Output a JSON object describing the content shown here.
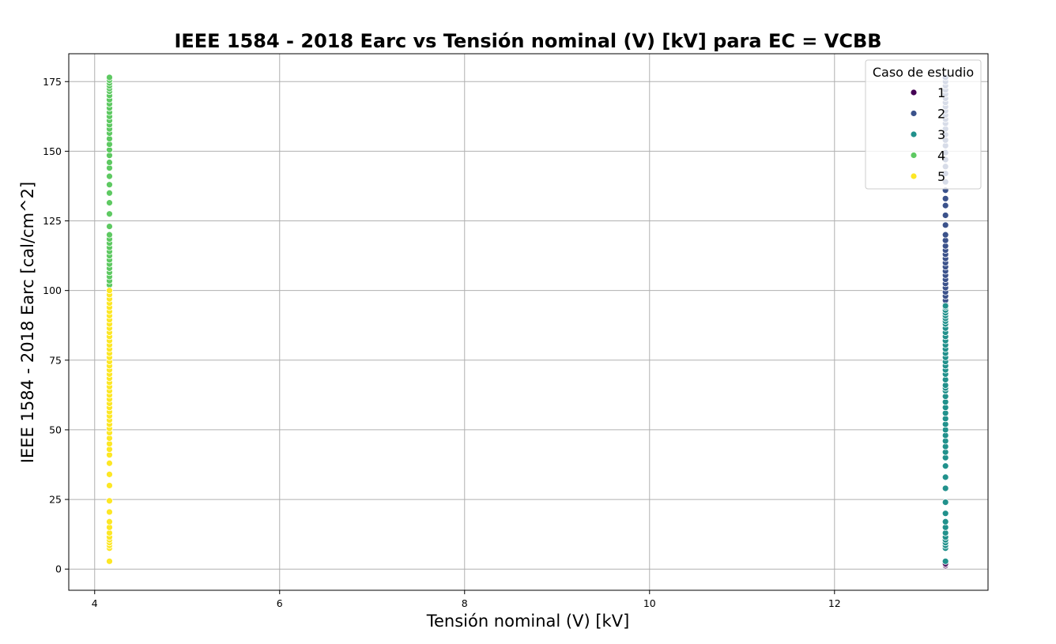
{
  "chart_data": {
    "type": "scatter",
    "title": "IEEE 1584 - 2018 Earc vs Tensión nominal (V) [kV] para EC = VCBB",
    "xlabel": "Tensión nominal (V) [kV]",
    "ylabel": "IEEE 1584 - 2018 Earc [cal/cm^2]",
    "xlim": [
      3.72,
      13.66
    ],
    "ylim": [
      -7.6,
      185
    ],
    "x_ticks": [
      4,
      6,
      8,
      10,
      12
    ],
    "y_ticks": [
      0,
      25,
      50,
      75,
      100,
      125,
      150,
      175
    ],
    "grid": true,
    "legend": {
      "title": "Caso de estudio",
      "placement": "top-right",
      "entries": [
        "1",
        "2",
        "3",
        "4",
        "5"
      ]
    },
    "series": [
      {
        "name": "1",
        "color": "#440154",
        "x": [
          13.2,
          13.2,
          13.2
        ],
        "y": [
          1.2,
          1.6,
          2.0
        ]
      },
      {
        "name": "2",
        "color": "#3b528b",
        "x": [
          13.2,
          13.2,
          13.2,
          13.2,
          13.2,
          13.2,
          13.2,
          13.2,
          13.2,
          13.2,
          13.2,
          13.2,
          13.2,
          13.2,
          13.2,
          13.2,
          13.2,
          13.2,
          13.2,
          13.2,
          13.2,
          13.2,
          13.2,
          13.2,
          13.2,
          13.2,
          13.2,
          13.2,
          13.2,
          13.2,
          13.2,
          13.2,
          13.2,
          13.2,
          13.2,
          13.2,
          13.2,
          13.2,
          13.2,
          13.2,
          13.2,
          13.2,
          13.2
        ],
        "y": [
          95,
          96.5,
          98,
          99.5,
          101,
          102.5,
          104,
          105.5,
          107,
          108.5,
          110,
          111.5,
          113,
          114.5,
          116,
          118,
          120,
          123.5,
          127,
          130.5,
          133,
          136,
          139,
          142,
          144.5,
          147,
          149.5,
          152,
          154,
          156,
          158,
          160,
          161.5,
          163,
          164.5,
          166,
          167.5,
          169,
          170.5,
          172,
          173.5,
          175,
          176.5
        ]
      },
      {
        "name": "3",
        "color": "#21918c",
        "x": [
          13.2,
          13.2,
          13.2,
          13.2,
          13.2,
          13.2,
          13.2,
          13.2,
          13.2,
          13.2,
          13.2,
          13.2,
          13.2,
          13.2,
          13.2,
          13.2,
          13.2,
          13.2,
          13.2,
          13.2,
          13.2,
          13.2,
          13.2,
          13.2,
          13.2,
          13.2,
          13.2,
          13.2,
          13.2,
          13.2,
          13.2,
          13.2,
          13.2,
          13.2,
          13.2,
          13.2,
          13.2,
          13.2,
          13.2,
          13.2,
          13.2,
          13.2,
          13.2,
          13.2,
          13.2,
          13.2,
          13.2,
          13.2,
          13.2,
          13.2
        ],
        "y": [
          2.8,
          7.5,
          8.5,
          9.5,
          10.5,
          11.5,
          13,
          15,
          17,
          20,
          24,
          29,
          33,
          37,
          40,
          42,
          44,
          46,
          48,
          50,
          52,
          54,
          56,
          58,
          60,
          62,
          64,
          65,
          66,
          68,
          70,
          71.5,
          73,
          74.5,
          76,
          77.5,
          79,
          80.5,
          82,
          83.5,
          85,
          86.5,
          88,
          89,
          90,
          91,
          92,
          93,
          94,
          94.5
        ]
      },
      {
        "name": "4",
        "color": "#5ec962",
        "x": [
          4.16,
          4.16,
          4.16,
          4.16,
          4.16,
          4.16,
          4.16,
          4.16,
          4.16,
          4.16,
          4.16,
          4.16,
          4.16,
          4.16,
          4.16,
          4.16,
          4.16,
          4.16,
          4.16,
          4.16,
          4.16,
          4.16,
          4.16,
          4.16,
          4.16,
          4.16,
          4.16,
          4.16,
          4.16,
          4.16,
          4.16,
          4.16,
          4.16,
          4.16,
          4.16,
          4.16,
          4.16,
          4.16,
          4.16,
          4.16,
          4.16
        ],
        "y": [
          102,
          103.5,
          105,
          106.5,
          108,
          109.5,
          111,
          112.5,
          114,
          115.5,
          117,
          118.5,
          120,
          123,
          127.5,
          131.5,
          135,
          138,
          141,
          144,
          146,
          148.5,
          150.5,
          152.5,
          154.5,
          156.5,
          158,
          159.5,
          161,
          162.5,
          164,
          165.5,
          167,
          168.5,
          170,
          171.5,
          172.5,
          173.5,
          174.5,
          175.5,
          176.5
        ]
      },
      {
        "name": "5",
        "color": "#fde725",
        "x": [
          4.16,
          4.16,
          4.16,
          4.16,
          4.16,
          4.16,
          4.16,
          4.16,
          4.16,
          4.16,
          4.16,
          4.16,
          4.16,
          4.16,
          4.16,
          4.16,
          4.16,
          4.16,
          4.16,
          4.16,
          4.16,
          4.16,
          4.16,
          4.16,
          4.16,
          4.16,
          4.16,
          4.16,
          4.16,
          4.16,
          4.16,
          4.16,
          4.16,
          4.16,
          4.16,
          4.16,
          4.16,
          4.16,
          4.16,
          4.16,
          4.16,
          4.16,
          4.16,
          4.16,
          4.16,
          4.16,
          4.16,
          4.16,
          4.16,
          4.16,
          4.16,
          4.16,
          4.16
        ],
        "y": [
          2.8,
          7.5,
          8.5,
          9.5,
          10.5,
          11.5,
          13,
          15,
          17,
          20.5,
          24.5,
          30,
          34,
          38,
          41,
          43,
          45,
          47,
          49,
          50.5,
          52,
          53.5,
          55,
          56.5,
          58,
          59.5,
          61,
          62.5,
          64,
          65.5,
          67,
          68.5,
          70,
          71.5,
          73,
          74.5,
          76,
          77.5,
          79,
          80.5,
          82,
          83.5,
          85,
          86.5,
          88,
          89.5,
          91,
          92.5,
          94,
          95.5,
          97,
          98.5,
          100
        ]
      }
    ]
  }
}
